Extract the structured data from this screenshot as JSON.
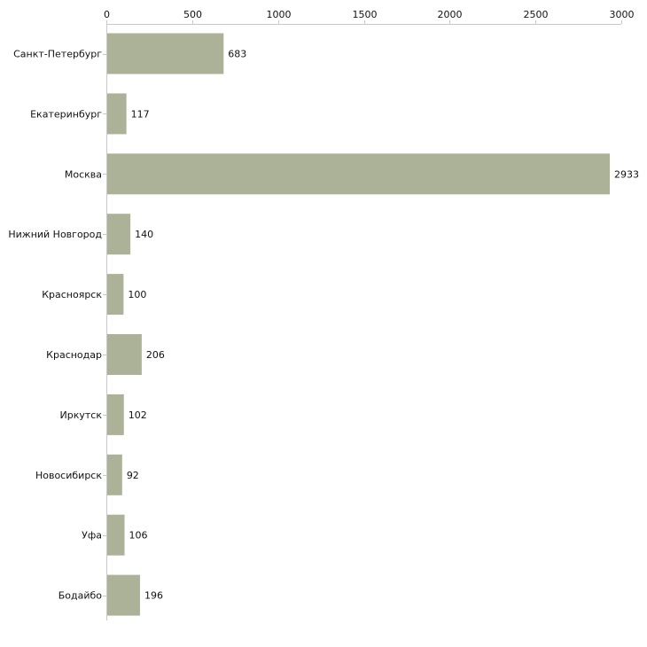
{
  "chart_data": {
    "type": "bar",
    "orientation": "horizontal",
    "title": "",
    "xlabel": "",
    "ylabel": "",
    "categories": [
      "Санкт-Петербург",
      "Екатеринбург",
      "Москва",
      "Нижний Новгород",
      "Красноярск",
      "Краснодар",
      "Иркутск",
      "Новосибирск",
      "Уфа",
      "Бодайбо"
    ],
    "values": [
      683,
      117,
      2933,
      140,
      100,
      206,
      102,
      92,
      106,
      196
    ],
    "xlim": [
      0,
      3000
    ],
    "xticks": [
      0,
      500,
      1000,
      1500,
      2000,
      2500,
      3000
    ],
    "axis_position": "top",
    "grid": false,
    "legend": "none",
    "bar_color": "#acb298",
    "data_labels": true
  }
}
